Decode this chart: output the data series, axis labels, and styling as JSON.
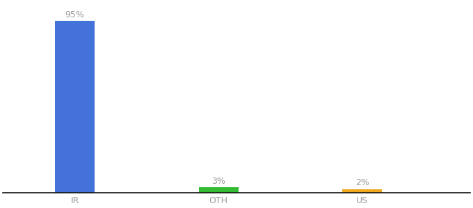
{
  "categories": [
    "IR",
    "OTH",
    "US"
  ],
  "values": [
    95,
    3,
    2
  ],
  "bar_colors": [
    "#4472db",
    "#33bb33",
    "#f0a820"
  ],
  "labels": [
    "95%",
    "3%",
    "2%"
  ],
  "ylim": [
    0,
    105
  ],
  "background_color": "#ffffff",
  "label_color": "#999999",
  "label_fontsize": 9,
  "tick_fontsize": 9,
  "bar_width": 0.55,
  "x_positions": [
    1,
    3,
    5
  ]
}
